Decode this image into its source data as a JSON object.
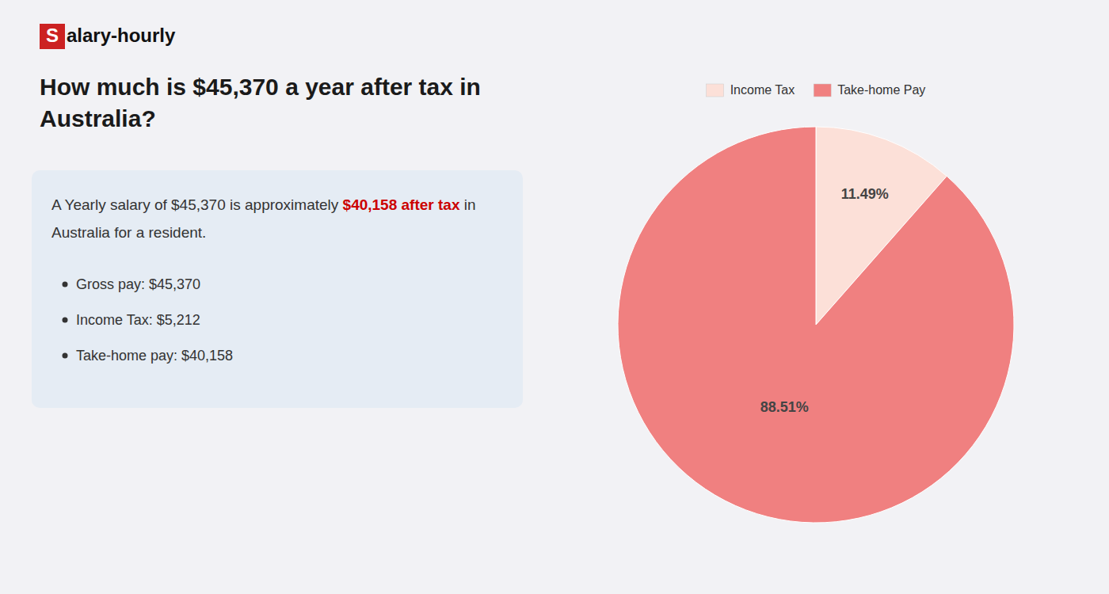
{
  "chart_data": {
    "type": "pie",
    "title": "How much is $45,370 a year after tax in Australia?",
    "annotations": [
      "S",
      "alary-hourly",
      "A Yearly salary of $45,370 is approximately ",
      "$40,158 after tax",
      " in",
      "Australia for a resident.",
      "Gross pay: $45,370",
      "Income Tax: $5,212",
      "Take-home pay: $40,158"
    ],
    "categories": [
      "Income Tax",
      "Take-home Pay"
    ],
    "values": [
      11.49,
      88.51
    ],
    "value_labels": [
      "11.49%",
      "88.51%"
    ],
    "data_labels": true,
    "colors": [
      "#fce0d8",
      "#f08080"
    ],
    "legend": "top"
  }
}
